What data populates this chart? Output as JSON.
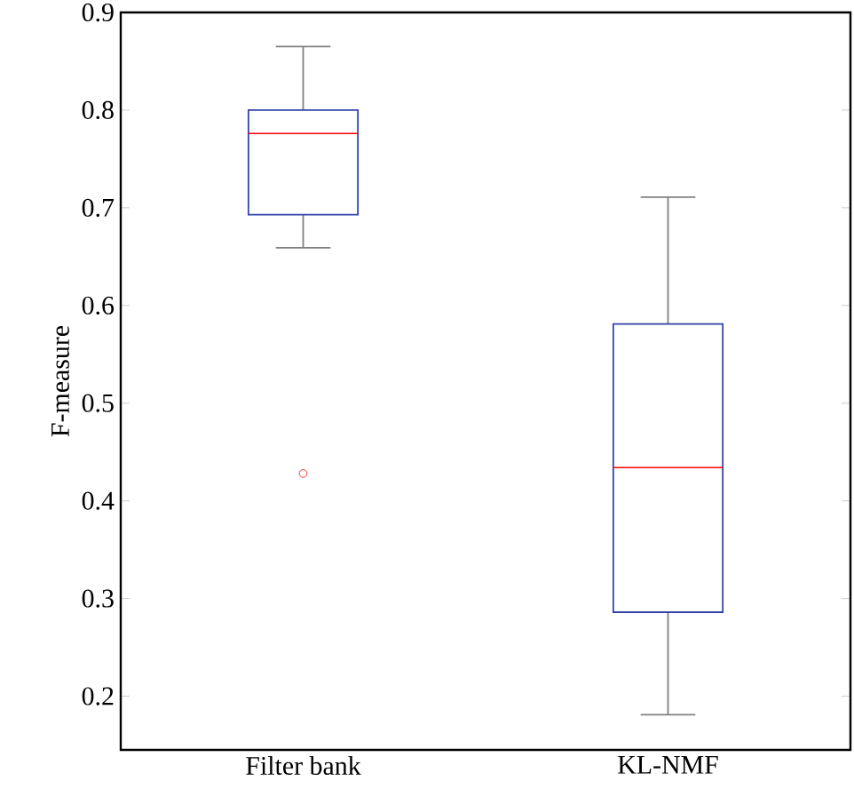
{
  "chart_data": {
    "type": "box",
    "ylabel": "F-measure",
    "categories": [
      "Filter bank",
      "KL-NMF"
    ],
    "color": "#3344aa",
    "ylim": [
      0.145,
      0.9
    ],
    "yticks": [
      0.2,
      0.3,
      0.4,
      0.5,
      0.6,
      0.7,
      0.8,
      0.9
    ],
    "boxes": [
      {
        "low": 0.659,
        "q1": 0.693,
        "median": 0.776,
        "q3": 0.8,
        "high": 0.865,
        "outliers": [
          0.428
        ]
      },
      {
        "low": 0.181,
        "q1": 0.286,
        "median": 0.434,
        "q3": 0.581,
        "high": 0.711
      }
    ]
  }
}
